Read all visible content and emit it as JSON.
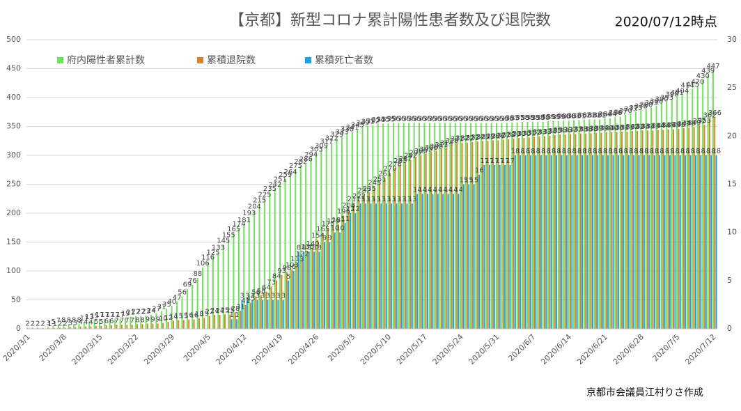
{
  "chart_data": {
    "type": "bar",
    "title": "【京都】新型コロナ累計陽性患者数及び退院数",
    "subtitle": "2020/07/12時点",
    "annotation": "京都市会議員江村りさ作成",
    "categories": [
      "2020/3/1",
      null,
      null,
      null,
      null,
      null,
      null,
      "2020/3/8",
      null,
      null,
      null,
      null,
      null,
      null,
      "2020/3/15",
      null,
      null,
      null,
      null,
      null,
      null,
      "2020/3/22",
      null,
      null,
      null,
      null,
      null,
      null,
      "2020/3/29",
      null,
      null,
      null,
      null,
      null,
      null,
      "2020/4/5",
      null,
      null,
      null,
      null,
      null,
      null,
      "2020/4/12",
      null,
      null,
      null,
      null,
      null,
      null,
      "2020/4/19",
      null,
      null,
      null,
      null,
      null,
      null,
      "2020/4/26",
      null,
      null,
      null,
      null,
      null,
      null,
      "2020/5/3",
      null,
      null,
      null,
      null,
      null,
      null,
      "2020/5/10",
      null,
      null,
      null,
      null,
      null,
      null,
      "2020/5/17",
      null,
      null,
      null,
      null,
      null,
      null,
      "2020/5/24",
      null,
      null,
      null,
      null,
      null,
      null,
      "2020/5/31",
      null,
      null,
      null,
      null,
      null,
      null,
      "2020/6/7",
      null,
      null,
      null,
      null,
      null,
      null,
      "2020/6/14",
      null,
      null,
      null,
      null,
      null,
      null,
      "2020/6/21",
      null,
      null,
      null,
      null,
      null,
      null,
      "2020/6/28",
      null,
      null,
      null,
      null,
      null,
      null,
      "2020/7/5",
      null,
      null,
      null,
      null,
      null,
      null,
      "2020/7/12"
    ],
    "series": [
      {
        "name": "府内陽性者累計数",
        "color": "#6ee05a",
        "values": [
          2,
          2,
          2,
          2,
          3,
          5,
          7,
          8,
          8,
          8,
          8,
          11,
          13,
          15,
          17,
          17,
          17,
          17,
          17,
          19,
          21,
          22,
          22,
          23,
          24,
          27,
          31,
          35,
          40,
          47,
          56,
          69,
          76,
          88,
          106,
          116,
          125,
          133,
          145,
          155,
          165,
          174,
          181,
          193,
          204,
          215,
          225,
          235,
          242,
          251,
          259,
          264,
          275,
          282,
          286,
          294,
          303,
          309,
          317,
          322,
          329,
          333,
          338,
          341,
          345,
          349,
          351,
          352,
          354,
          355,
          355,
          356,
          356,
          356,
          356,
          356,
          356,
          356,
          356,
          356,
          356,
          356,
          356,
          356,
          356,
          356,
          356,
          356,
          356,
          356,
          356,
          356,
          356,
          356,
          357,
          357,
          358,
          358,
          358,
          358,
          358,
          359,
          359,
          359,
          360,
          360,
          361,
          361,
          362,
          362,
          362,
          362,
          364,
          364,
          366,
          367,
          370,
          373,
          375,
          378,
          380,
          383,
          386,
          390,
          393,
          398,
          401,
          404,
          414,
          415,
          420,
          430,
          439,
          447
        ]
      },
      {
        "name": "累積退院数",
        "color": "#d9822b",
        "values": [
          0,
          0,
          0,
          0,
          1,
          1,
          2,
          2,
          3,
          3,
          4,
          4,
          4,
          5,
          5,
          6,
          6,
          7,
          7,
          7,
          7,
          8,
          8,
          9,
          9,
          9,
          10,
          12,
          14,
          15,
          15,
          16,
          16,
          18,
          19,
          22,
          24,
          24,
          25,
          25,
          28,
          31,
          41,
          45,
          56,
          58,
          64,
          73,
          84,
          93,
          98,
          103,
          113,
          122,
          135,
          140,
          154,
          165,
          175,
          179,
          181,
          196,
          206,
          217,
          222,
          232,
          235,
          245,
          251,
          261,
          270,
          278,
          283,
          287,
          292,
          297,
          300,
          303,
          306,
          308,
          311,
          314,
          318,
          321,
          322,
          322,
          323,
          324,
          325,
          325,
          326,
          326,
          327,
          328,
          329,
          330,
          330,
          331,
          332,
          333,
          333,
          334,
          335,
          336,
          336,
          337,
          337,
          338,
          338,
          338,
          339,
          339,
          340,
          340,
          340,
          341,
          341,
          342,
          342,
          343,
          343,
          343,
          344,
          344,
          345,
          345,
          346,
          347,
          348,
          349,
          352,
          353,
          362,
          366
        ]
      },
      {
        "name": "累積死亡者数",
        "color": "#1ba3e0",
        "axis": "y2",
        "values": [
          0,
          0,
          0,
          0,
          0,
          0,
          0,
          0,
          0,
          0,
          0,
          0,
          0,
          0,
          0,
          0,
          0,
          0,
          0,
          0,
          0,
          0,
          0,
          0,
          0,
          0,
          0,
          0,
          0,
          0,
          0,
          0,
          0,
          0,
          0,
          0,
          0,
          0,
          0,
          1,
          1,
          3,
          3,
          3,
          3,
          3,
          3,
          3,
          3,
          3,
          5,
          6,
          8,
          8,
          8,
          8,
          8,
          9,
          9,
          10,
          10,
          11,
          12,
          12,
          13,
          13,
          13,
          13,
          13,
          13,
          13,
          13,
          13,
          13,
          13,
          14,
          14,
          14,
          14,
          14,
          14,
          14,
          14,
          14,
          15,
          15,
          15,
          16,
          17,
          17,
          17,
          17,
          17,
          17,
          18,
          18,
          18,
          18,
          18,
          18,
          18,
          18,
          18,
          18,
          18,
          18,
          18,
          18,
          18,
          18,
          18,
          18,
          18,
          18,
          18,
          18,
          18,
          18,
          18,
          18,
          18,
          18,
          18,
          18,
          18,
          18,
          18,
          18,
          18,
          18,
          18,
          18,
          18,
          18
        ]
      }
    ],
    "ylim": [
      0,
      500
    ],
    "yticks": [
      0,
      50,
      100,
      150,
      200,
      250,
      300,
      350,
      400,
      450,
      500
    ],
    "y2lim": [
      0,
      30
    ],
    "y2ticks": [
      0,
      5,
      10,
      15,
      20,
      25,
      30
    ],
    "grid": true,
    "legend": "top-left"
  }
}
